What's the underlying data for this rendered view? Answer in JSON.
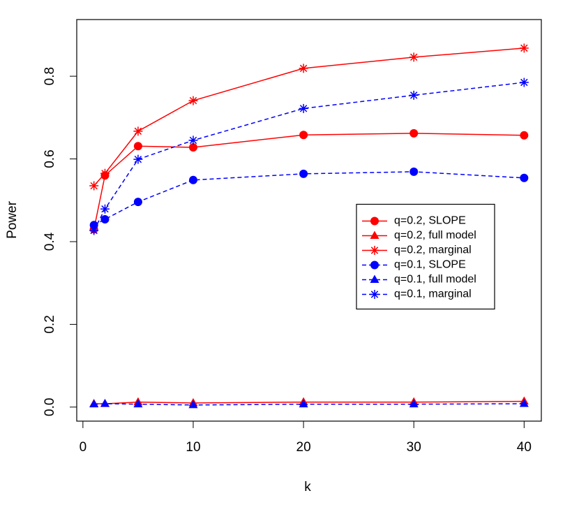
{
  "chart_data": {
    "type": "line",
    "x_label": "k",
    "y_label": "Power",
    "x": [
      1,
      2,
      5,
      10,
      20,
      30,
      40
    ],
    "xlim": [
      -0.56,
      41.56
    ],
    "xticks": [
      0,
      10,
      20,
      30,
      40
    ],
    "ylim": [
      -0.034,
      0.937
    ],
    "yticks": [
      {
        "value": 0,
        "label": "0.0"
      },
      0.2,
      0.4,
      0.6,
      0.8
    ],
    "legend_position": "right",
    "series": [
      {
        "name": "q=0.2, SLOPE",
        "color": "#ff0000",
        "marker": "circle",
        "dash": false,
        "values": [
          0.43,
          0.56,
          0.631,
          0.628,
          0.658,
          0.662,
          0.657
        ]
      },
      {
        "name": "q=0.2, full model",
        "color": "#ff0000",
        "marker": "triangle",
        "dash": false,
        "values": [
          0.008,
          0.008,
          0.012,
          0.01,
          0.012,
          0.012,
          0.014
        ]
      },
      {
        "name": "q=0.2, marginal",
        "color": "#ff0000",
        "marker": "star",
        "dash": false,
        "values": [
          0.535,
          0.565,
          0.667,
          0.741,
          0.819,
          0.846,
          0.868
        ]
      },
      {
        "name": "q=0.1, SLOPE",
        "color": "#0000ff",
        "marker": "circle",
        "dash": true,
        "values": [
          0.44,
          0.454,
          0.496,
          0.549,
          0.564,
          0.569,
          0.554
        ]
      },
      {
        "name": "q=0.1, full model",
        "color": "#0000ff",
        "marker": "triangle",
        "dash": true,
        "values": [
          0.007,
          0.008,
          0.007,
          0.005,
          0.007,
          0.007,
          0.008
        ]
      },
      {
        "name": "q=0.1, marginal",
        "color": "#0000ff",
        "marker": "star",
        "dash": true,
        "values": [
          0.427,
          0.479,
          0.599,
          0.645,
          0.722,
          0.754,
          0.785
        ]
      }
    ]
  }
}
